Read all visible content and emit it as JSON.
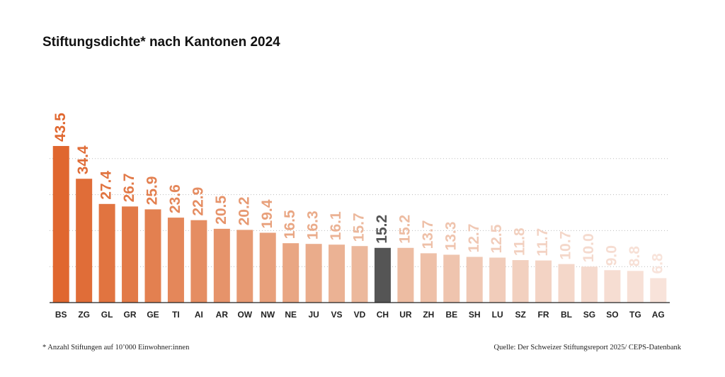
{
  "chart_data": {
    "type": "bar",
    "title": "Stiftungsdichte* nach Kantonen 2024",
    "footnote": "* Anzahl Stiftungen auf 10’000 Einwohner:innen",
    "source": "Quelle: Der Schweizer Stiftungsreport 2025/ CEPS-Datenbank",
    "categories": [
      "BS",
      "ZG",
      "GL",
      "GR",
      "GE",
      "TI",
      "AI",
      "AR",
      "OW",
      "NW",
      "NE",
      "JU",
      "VS",
      "VD",
      "CH",
      "UR",
      "ZH",
      "BE",
      "SH",
      "LU",
      "SZ",
      "FR",
      "BL",
      "SG",
      "SO",
      "TG",
      "AG"
    ],
    "values": [
      43.5,
      34.4,
      27.4,
      26.7,
      25.9,
      23.6,
      22.9,
      20.5,
      20.2,
      19.4,
      16.5,
      16.3,
      16.1,
      15.7,
      15.2,
      15.2,
      13.7,
      13.3,
      12.7,
      12.5,
      11.8,
      11.7,
      10.7,
      10.0,
      9.0,
      8.8,
      6.8
    ],
    "value_labels": [
      "43.5",
      "34.4",
      "27.4",
      "26.7",
      "25.9",
      "23.6",
      "22.9",
      "20.5",
      "20.2",
      "19.4",
      "16.5",
      "16.3",
      "16.1",
      "15.7",
      "15.2",
      "15.2",
      "13.7",
      "13.3",
      "12.7",
      "12.5",
      "11.8",
      "11.7",
      "10.7",
      "10.0",
      "9.0",
      "8.8",
      "6.8"
    ],
    "colors": [
      "#e0672f",
      "#e06d38",
      "#e17440",
      "#e27a48",
      "#e38050",
      "#e4875a",
      "#e58d62",
      "#e6936a",
      "#e79a73",
      "#e8a07b",
      "#e9a683",
      "#eaac8b",
      "#ebb294",
      "#ecb89c",
      "#555555",
      "#edbca2",
      "#eec0a8",
      "#efc4ae",
      "#f0c8b4",
      "#f1ccba",
      "#f2d0bf",
      "#f3d3c4",
      "#f4d7c9",
      "#f5dace",
      "#f6ddd2",
      "#f7e0d6",
      "#f8e3da"
    ],
    "ylim": [
      0,
      45
    ],
    "yticks": [
      10,
      20,
      30,
      40
    ],
    "grid": true
  }
}
